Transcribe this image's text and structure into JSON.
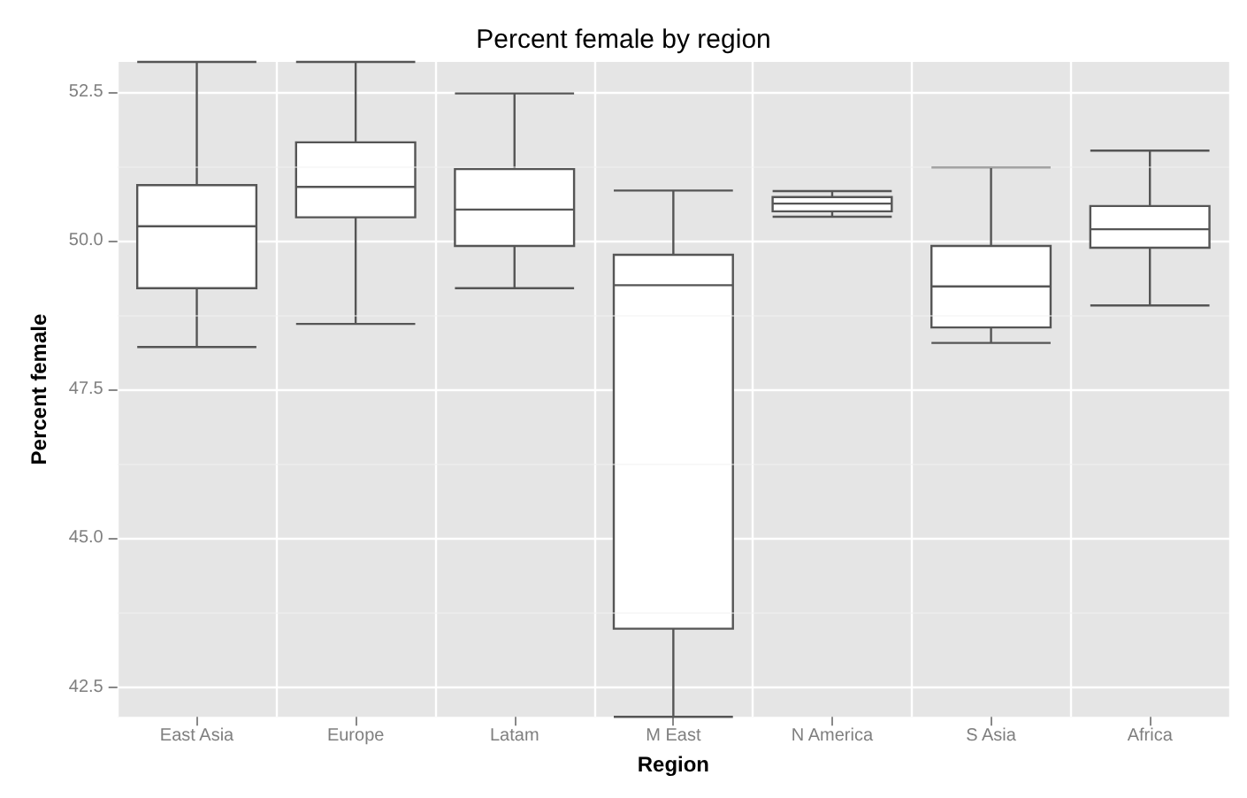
{
  "chart_data": {
    "type": "box",
    "title": "Percent female by region",
    "xlabel": "Region",
    "ylabel": "Percent female",
    "categories": [
      "East Asia",
      "Europe",
      "Latam",
      "M East",
      "N America",
      "S Asia",
      "Africa"
    ],
    "boxes": [
      {
        "low": 48.21,
        "q1": 49.2,
        "median": 50.24,
        "q3": 50.93,
        "high": 53
      },
      {
        "low": 48.6,
        "q1": 50.39,
        "median": 50.9,
        "q3": 51.65,
        "high": 53
      },
      {
        "low": 49.2,
        "q1": 49.91,
        "median": 50.52,
        "q3": 51.2,
        "high": 52.47
      },
      {
        "low": 42,
        "q1": 43.48,
        "median": 49.25,
        "q3": 49.76,
        "high": 50.84
      },
      {
        "low": 50.4,
        "q1": 50.49,
        "median": 50.62,
        "q3": 50.73,
        "high": 50.83
      },
      {
        "low": 48.28,
        "q1": 48.54,
        "median": 49.23,
        "q3": 49.91,
        "high": 51.23
      },
      {
        "low": 48.91,
        "q1": 49.88,
        "median": 50.19,
        "q3": 50.58,
        "high": 51.51
      }
    ],
    "ylim": [
      42,
      53
    ],
    "yticks": [
      42.5,
      {
        "value": 45,
        "label": "45.0"
      },
      47.5,
      {
        "value": 50,
        "label": "50.0"
      },
      52.5
    ],
    "grid": true
  }
}
